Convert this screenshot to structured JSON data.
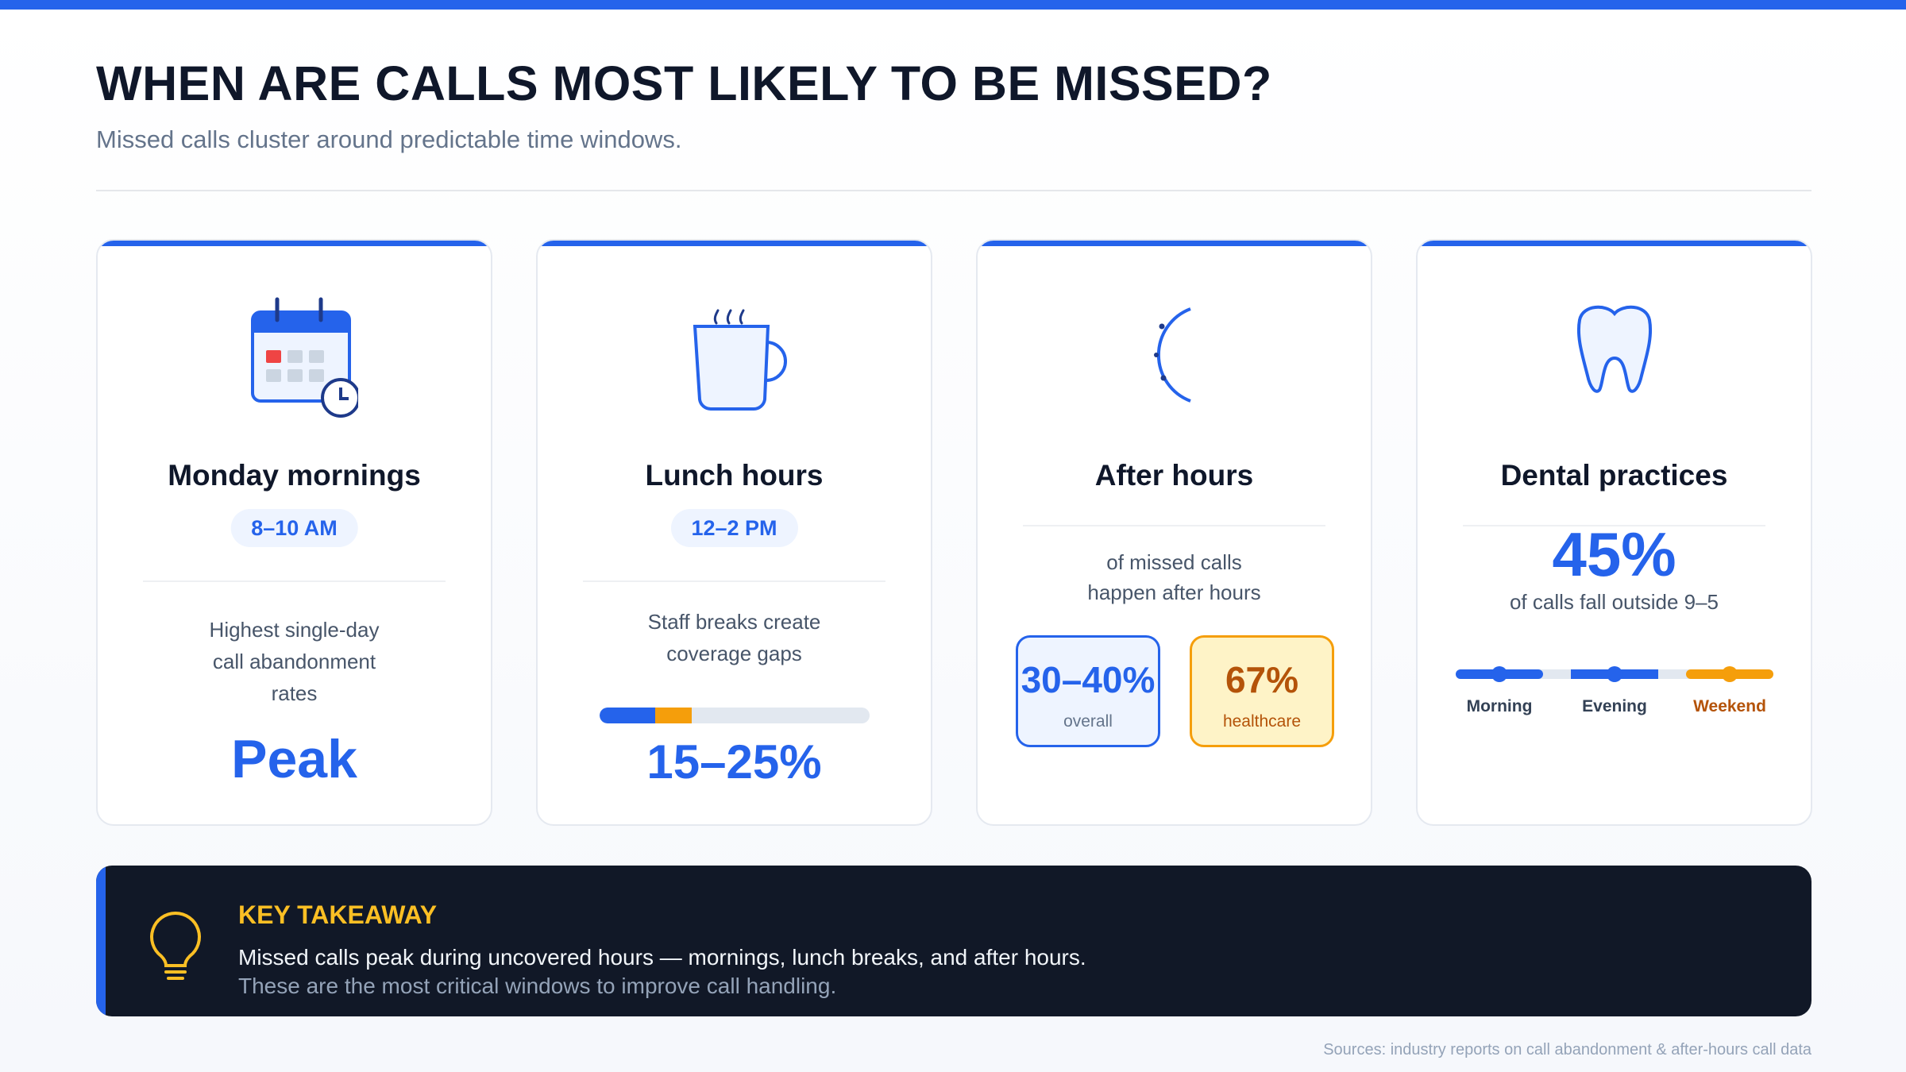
{
  "colors": {
    "accent": "#2563eb",
    "warning": "#f59e0b",
    "dark": "#111827",
    "highlight": "#fbbf24"
  },
  "header": {
    "title": "WHEN ARE CALLS MOST LIKELY TO BE MISSED?",
    "subtitle": "Missed calls cluster around predictable time windows."
  },
  "cards": [
    {
      "icon": "calendar-clock-icon",
      "title": "Monday mornings",
      "badge": "8–10 AM",
      "lines": [
        "Highest single-day",
        "call abandonment",
        "rates"
      ],
      "stat": "Peak"
    },
    {
      "icon": "coffee-mug-icon",
      "title": "Lunch hours",
      "badge": "12–2 PM",
      "lines": [
        "Staff breaks create",
        "coverage gaps"
      ],
      "stat": "15–25%",
      "range": {
        "low": 15,
        "high": 25
      }
    },
    {
      "icon": "moon-icon",
      "title": "After hours",
      "lines": [
        "of missed calls",
        "happen after hours"
      ],
      "boxes": [
        {
          "value": "30–40%",
          "label": "overall"
        },
        {
          "value": "67%",
          "label": "healthcare"
        }
      ]
    },
    {
      "icon": "tooth-icon",
      "title": "Dental practices",
      "stat": "45%",
      "caption": "of calls fall outside 9–5",
      "segments": [
        {
          "label": "Morning"
        },
        {
          "label": "Evening"
        },
        {
          "label": "Weekend",
          "highlight": true
        }
      ]
    }
  ],
  "takeaway": {
    "icon": "lightbulb-icon",
    "heading": "KEY TAKEAWAY",
    "line1": "Missed calls peak during uncovered hours — mornings, lunch breaks, and after hours.",
    "line2": "These are the most critical windows to improve call handling."
  },
  "sources": "Sources: industry reports on call abandonment & after-hours call data"
}
